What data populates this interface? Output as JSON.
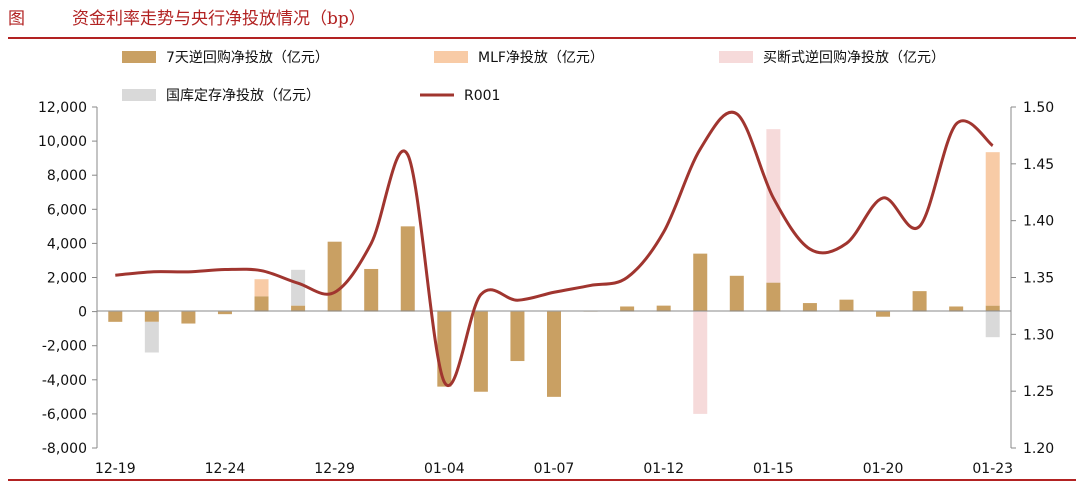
{
  "header": {
    "figure_label": "图",
    "title": "资金利率走势与央行净投放情况（bp）"
  },
  "chart_data": {
    "type": "bar",
    "x_ticks": [
      "12-19",
      "12-24",
      "12-29",
      "01-04",
      "01-07",
      "01-12",
      "01-15",
      "01-20",
      "01-23"
    ],
    "y_left": {
      "ticks": [
        "12,000",
        "10,000",
        "8,000",
        "6,000",
        "4,000",
        "2,000",
        "0",
        "-2,000",
        "-4,000",
        "-6,000",
        "-8,000"
      ],
      "ylim": [
        -8000,
        12000
      ]
    },
    "y_right": {
      "ticks": [
        "1.50",
        "1.45",
        "1.40",
        "1.35",
        "1.30",
        "1.25",
        "1.20"
      ],
      "ylim": [
        1.2,
        1.5
      ]
    },
    "legend_placement": "top",
    "series": [
      {
        "name": "7天逆回购净投放（亿元）",
        "kind": "bar",
        "color": "#c9a063",
        "values": [
          -600,
          -600,
          -700,
          -150,
          900,
          350,
          4100,
          2500,
          5000,
          -4400,
          -4700,
          -2900,
          -5000,
          50,
          300,
          350,
          3400,
          2100,
          1700,
          500,
          700,
          -300,
          1200,
          300,
          350
        ]
      },
      {
        "name": "MLF净投放（亿元）",
        "kind": "bar",
        "color": "#f8cba6",
        "values": [
          0,
          0,
          0,
          0,
          1000,
          0,
          0,
          0,
          0,
          0,
          0,
          0,
          0,
          0,
          0,
          0,
          0,
          0,
          0,
          0,
          0,
          0,
          0,
          0,
          9000
        ]
      },
      {
        "name": "买断式逆回购净投放（亿元）",
        "kind": "bar",
        "color": "#f6dada",
        "values": [
          0,
          0,
          0,
          0,
          0,
          0,
          0,
          0,
          0,
          0,
          0,
          0,
          0,
          0,
          0,
          0,
          -6000,
          0,
          9000,
          0,
          0,
          0,
          0,
          0,
          0
        ]
      },
      {
        "name": "国库定存净投放（亿元）",
        "kind": "bar",
        "color": "#d9d9d9",
        "values": [
          0,
          -1800,
          0,
          0,
          0,
          2100,
          0,
          0,
          0,
          0,
          0,
          0,
          0,
          0,
          0,
          0,
          0,
          0,
          0,
          0,
          0,
          0,
          0,
          0,
          -1500
        ]
      },
      {
        "name": "R001",
        "kind": "line",
        "axis": "right",
        "color": "#a0352f",
        "values": [
          1.352,
          1.355,
          1.355,
          1.357,
          1.356,
          1.345,
          1.337,
          1.38,
          1.458,
          1.258,
          1.335,
          1.33,
          1.337,
          1.343,
          1.35,
          1.39,
          1.463,
          1.494,
          1.42,
          1.375,
          1.38,
          1.42,
          1.395,
          1.485,
          1.466
        ]
      }
    ],
    "grid": false
  }
}
